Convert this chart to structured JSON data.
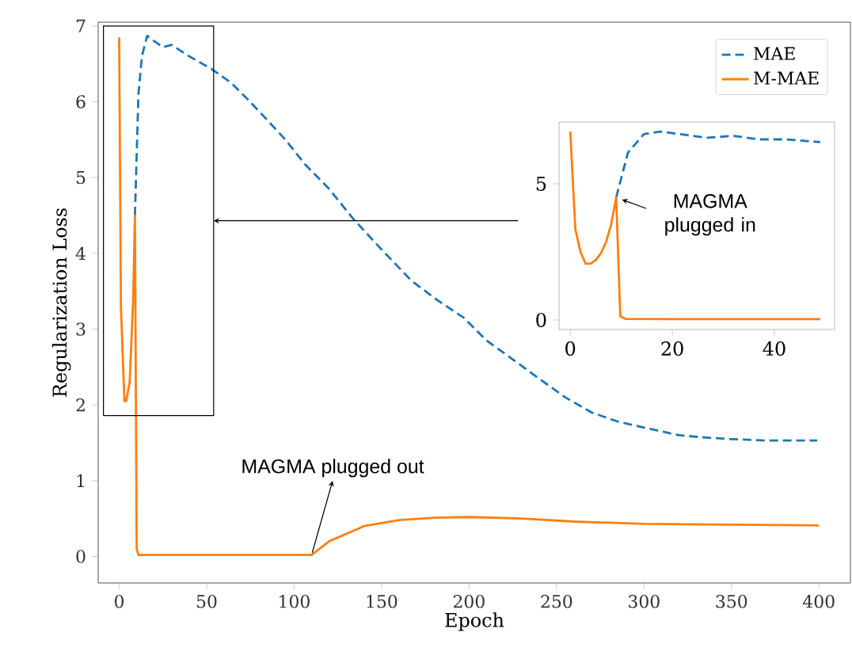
{
  "chart_data": [
    {
      "type": "line",
      "xlabel": "Epoch",
      "ylabel": "Regularization Loss",
      "xlim": [
        -12,
        418
      ],
      "ylim": [
        -0.35,
        7.05
      ],
      "xticks": [
        0,
        50,
        100,
        150,
        200,
        250,
        300,
        350,
        400
      ],
      "yticks": [
        0,
        1,
        2,
        3,
        4,
        5,
        6,
        7
      ],
      "legend": "top right",
      "series": [
        {
          "name": "MAE",
          "color": "#1f77b4",
          "line_style": "dashed",
          "x": [
            9,
            11,
            13,
            16,
            20,
            25,
            30,
            40,
            53,
            64,
            74,
            85,
            95,
            106,
            120,
            134,
            150,
            167,
            182,
            197,
            210,
            225,
            238,
            255,
            270,
            285,
            302,
            320,
            335,
            348,
            370,
            399
          ],
          "values": [
            4.5,
            6.1,
            6.6,
            6.87,
            6.8,
            6.72,
            6.75,
            6.6,
            6.43,
            6.25,
            6.02,
            5.75,
            5.5,
            5.18,
            4.85,
            4.45,
            4.05,
            3.64,
            3.38,
            3.15,
            2.85,
            2.6,
            2.38,
            2.1,
            1.9,
            1.78,
            1.69,
            1.6,
            1.57,
            1.55,
            1.53,
            1.53
          ]
        },
        {
          "name": "M-MAE",
          "color": "#ff7f0e",
          "line_style": "solid",
          "x": [
            0,
            1,
            3,
            4,
            6,
            7,
            8,
            9,
            10,
            11,
            110,
            120,
            140,
            160,
            180,
            200,
            230,
            260,
            300,
            350,
            400
          ],
          "values": [
            6.85,
            3.3,
            2.05,
            2.05,
            2.3,
            2.85,
            3.4,
            4.5,
            0.1,
            0.02,
            0.02,
            0.2,
            0.4,
            0.48,
            0.51,
            0.52,
            0.5,
            0.46,
            0.43,
            0.42,
            0.41
          ]
        }
      ],
      "annotations": [
        {
          "text": "MAGMA plugged out",
          "x": 110,
          "y": 0.02
        }
      ]
    },
    {
      "type": "line",
      "xlim": [
        -2.2,
        51.8
      ],
      "ylim": [
        -0.35,
        7.27
      ],
      "xticks": [
        0,
        20,
        40
      ],
      "yticks": [
        0,
        5
      ],
      "series": [
        {
          "color": "#1f77b4",
          "line_style": "dashed",
          "x": [
            9,
            11.3,
            14.4,
            17.7,
            21.6,
            26.8,
            32,
            37.1,
            42.3,
            49
          ],
          "values": [
            4.5,
            6.14,
            6.82,
            6.92,
            6.82,
            6.69,
            6.76,
            6.63,
            6.63,
            6.53
          ]
        },
        {
          "color": "#ff7f0e",
          "line_style": "solid",
          "x": [
            0,
            1,
            2,
            3,
            4,
            5,
            6,
            7,
            8,
            9,
            9.8,
            10.8,
            20,
            30,
            40,
            49
          ],
          "values": [
            6.92,
            3.33,
            2.5,
            2.07,
            2.07,
            2.2,
            2.45,
            2.85,
            3.5,
            4.5,
            0.14,
            0.04,
            0.03,
            0.03,
            0.03,
            0.03
          ]
        }
      ],
      "annotations": [
        {
          "text": "MAGMA plugged in",
          "x": 9,
          "y": 4.5
        }
      ]
    }
  ]
}
